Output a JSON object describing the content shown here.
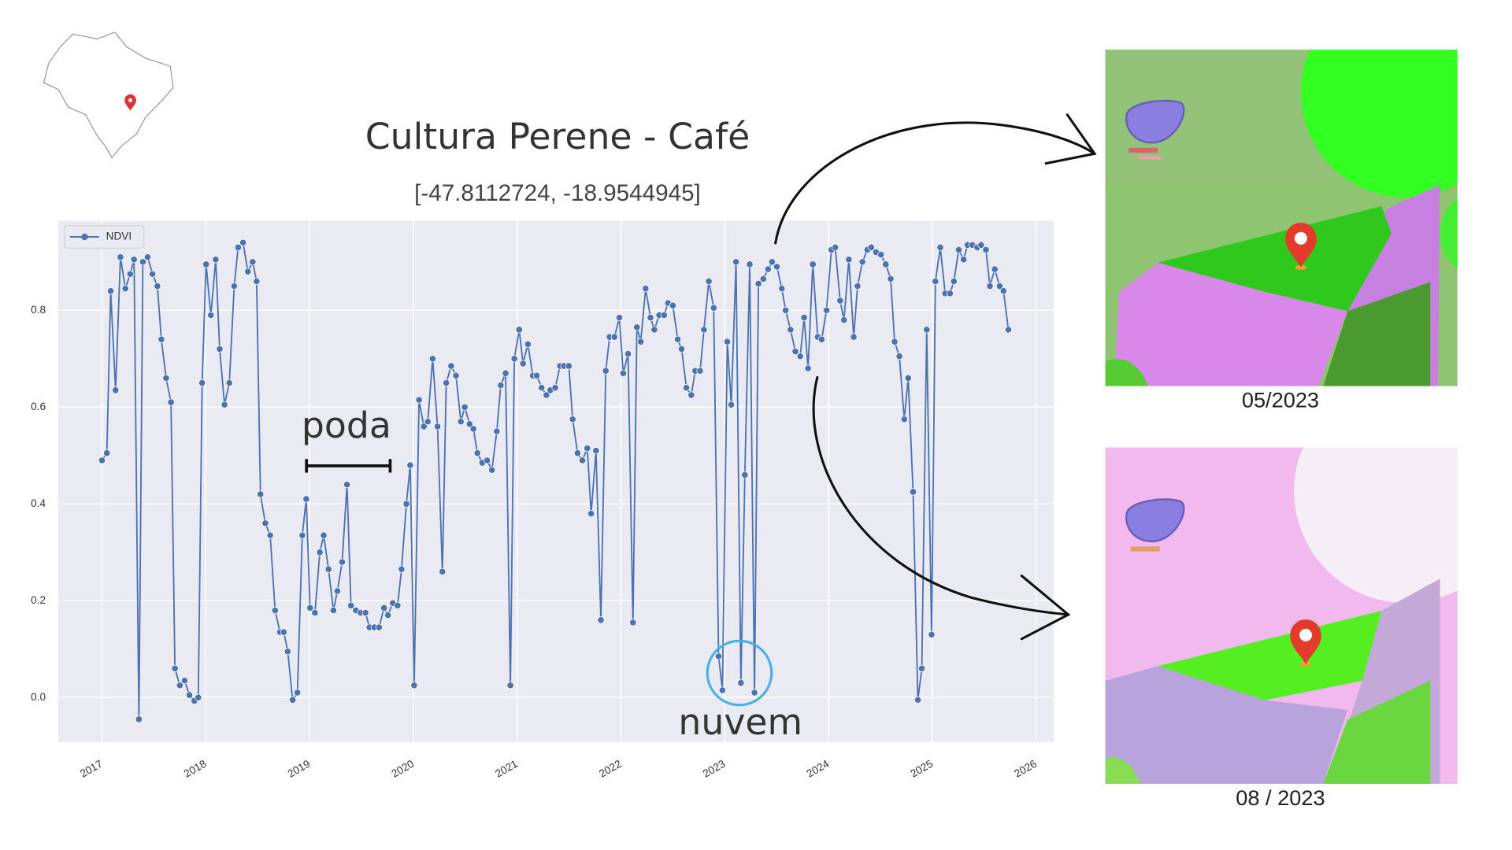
{
  "chart_data": {
    "type": "line",
    "title": "Cultura Perene - Café",
    "subtitle": "[-47.8112724, -18.9544945]",
    "x": [
      2017.0,
      2017.047,
      2017.084,
      2017.131,
      2017.178,
      2017.225,
      2017.272,
      2017.309,
      2017.356,
      2017.394,
      2017.44,
      2017.487,
      2017.534,
      2017.572,
      2017.618,
      2017.665,
      2017.703,
      2017.75,
      2017.796,
      2017.843,
      2017.89,
      2017.928,
      2017.965,
      2018.003,
      2018.049,
      2018.096,
      2018.134,
      2018.181,
      2018.227,
      2018.274,
      2018.312,
      2018.359,
      2018.406,
      2018.452,
      2018.49,
      2018.527,
      2018.574,
      2018.621,
      2018.668,
      2018.715,
      2018.752,
      2018.79,
      2018.837,
      2018.883,
      2018.93,
      2018.968,
      2019.005,
      2019.052,
      2019.099,
      2019.136,
      2019.183,
      2019.23,
      2019.268,
      2019.314,
      2019.361,
      2019.399,
      2019.446,
      2019.492,
      2019.539,
      2019.577,
      2019.624,
      2019.67,
      2019.717,
      2019.755,
      2019.802,
      2019.848,
      2019.886,
      2019.933,
      2019.97,
      2020.008,
      2020.055,
      2020.101,
      2020.139,
      2020.186,
      2020.233,
      2020.28,
      2020.317,
      2020.364,
      2020.411,
      2020.458,
      2020.495,
      2020.542,
      2020.579,
      2020.617,
      2020.664,
      2020.711,
      2020.757,
      2020.804,
      2020.842,
      2020.889,
      2020.935,
      2020.973,
      2021.02,
      2021.057,
      2021.104,
      2021.151,
      2021.189,
      2021.236,
      2021.282,
      2021.32,
      2021.367,
      2021.413,
      2021.451,
      2021.498,
      2021.535,
      2021.582,
      2021.629,
      2021.676,
      2021.713,
      2021.76,
      2021.807,
      2021.854,
      2021.891,
      2021.938,
      2021.985,
      2022.022,
      2022.069,
      2022.116,
      2022.154,
      2022.191,
      2022.238,
      2022.285,
      2022.322,
      2022.369,
      2022.416,
      2022.454,
      2022.5,
      2022.547,
      2022.585,
      2022.631,
      2022.678,
      2022.716,
      2022.763,
      2022.8,
      2022.847,
      2022.894,
      2022.941,
      2022.978,
      2023.025,
      2023.063,
      2023.109,
      2023.156,
      2023.194,
      2023.241,
      2023.287,
      2023.325,
      2023.372,
      2023.418,
      2023.456,
      2023.503,
      2023.55,
      2023.587,
      2023.634,
      2023.681,
      2023.728,
      2023.765,
      2023.803,
      2023.849,
      2023.896,
      2023.934,
      2023.981,
      2024.028,
      2024.065,
      2024.112,
      2024.149,
      2024.196,
      2024.243,
      2024.28,
      2024.327,
      2024.374,
      2024.412,
      2024.459,
      2024.505,
      2024.552,
      2024.599,
      2024.637,
      2024.683,
      2024.73,
      2024.768,
      2024.815,
      2024.861,
      2024.899,
      2024.946,
      2024.993,
      2025.03,
      2025.077,
      2025.124,
      2025.171,
      2025.208,
      2025.255,
      2025.302,
      2025.339,
      2025.386,
      2025.433,
      2025.47,
      2025.517,
      2025.555,
      2025.602,
      2025.649,
      2025.686,
      2025.733
    ],
    "series": [
      {
        "name": "NDVI",
        "color": "#4c72b0",
        "values": [
          0.49,
          0.505,
          0.84,
          0.635,
          0.91,
          0.845,
          0.875,
          0.905,
          -0.045,
          0.9,
          0.91,
          0.875,
          0.85,
          0.74,
          0.66,
          0.61,
          0.06,
          0.025,
          0.035,
          0.005,
          -0.007,
          0,
          0.65,
          0.895,
          0.79,
          0.905,
          0.72,
          0.605,
          0.65,
          0.85,
          0.93,
          0.94,
          0.88,
          0.9,
          0.86,
          0.42,
          0.36,
          0.335,
          0.18,
          0.135,
          0.135,
          0.095,
          -0.005,
          0.01,
          0.335,
          0.41,
          0.185,
          0.175,
          0.3,
          0.335,
          0.265,
          0.18,
          0.22,
          0.28,
          0.44,
          0.19,
          0.18,
          0.175,
          0.175,
          0.145,
          0.145,
          0.145,
          0.185,
          0.17,
          0.195,
          0.19,
          0.265,
          0.4,
          0.48,
          0.025,
          0.615,
          0.56,
          0.57,
          0.7,
          0.56,
          0.26,
          0.65,
          0.685,
          0.665,
          0.57,
          0.6,
          0.565,
          0.555,
          0.505,
          0.485,
          0.49,
          0.47,
          0.55,
          0.645,
          0.67,
          0.025,
          0.7,
          0.76,
          0.69,
          0.73,
          0.665,
          0.665,
          0.64,
          0.625,
          0.635,
          0.64,
          0.685,
          0.685,
          0.685,
          0.575,
          0.505,
          0.49,
          0.515,
          0.38,
          0.51,
          0.16,
          0.675,
          0.745,
          0.745,
          0.785,
          0.67,
          0.71,
          0.155,
          0.765,
          0.735,
          0.845,
          0.785,
          0.76,
          0.79,
          0.79,
          0.815,
          0.81,
          0.74,
          0.72,
          0.64,
          0.625,
          0.675,
          0.675,
          0.76,
          0.86,
          0.805,
          0.085,
          0.015,
          0.735,
          0.605,
          0.9,
          0.03,
          0.46,
          0.895,
          0.01,
          0.855,
          0.865,
          0.885,
          0.9,
          0.89,
          0.845,
          0.8,
          0.76,
          0.715,
          0.705,
          0.785,
          0.68,
          0.895,
          0.745,
          0.74,
          0.8,
          0.925,
          0.93,
          0.82,
          0.78,
          0.905,
          0.745,
          0.85,
          0.9,
          0.925,
          0.93,
          0.92,
          0.915,
          0.895,
          0.865,
          0.735,
          0.705,
          0.575,
          0.66,
          0.425,
          -0.005,
          0.06,
          0.76,
          0.13,
          0.86,
          0.93,
          0.835,
          0.835,
          0.86,
          0.925,
          0.905,
          0.935,
          0.935,
          0.93,
          0.935,
          0.925,
          0.85,
          0.885,
          0.85,
          0.84,
          0.76
        ]
      }
    ],
    "xlim": [
      2016.58,
      2026.17
    ],
    "xticks": [
      2017,
      2018,
      2019,
      2020,
      2021,
      2022,
      2023,
      2024,
      2025,
      2026
    ],
    "ylim": [
      -0.092,
      0.985
    ],
    "yticks": [
      {
        "value": 0,
        "label": "0.0"
      },
      0.2,
      0.4,
      0.6,
      0.8
    ],
    "grid": true,
    "legend": "upper left",
    "annotations": [
      {
        "text": "poda"
      },
      {
        "text": "nuvem"
      }
    ]
  },
  "images": [
    {
      "caption": "05/2023"
    },
    {
      "caption": "08 / 2023"
    }
  ]
}
